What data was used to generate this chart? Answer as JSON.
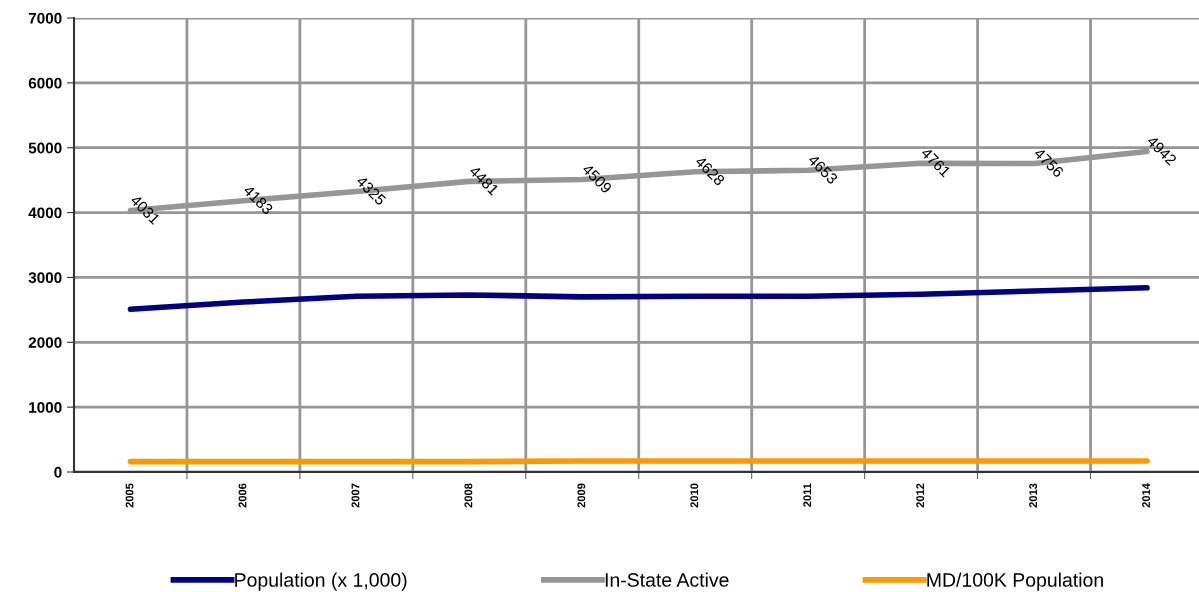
{
  "chart_data": {
    "type": "line",
    "categories": [
      "2005",
      "2006",
      "2007",
      "2008",
      "2009",
      "2010",
      "2011",
      "2012",
      "2013",
      "2014"
    ],
    "series": [
      {
        "name": "Population (x 1,000)",
        "color": "#000080",
        "values": [
          2510,
          2620,
          2710,
          2730,
          2700,
          2710,
          2710,
          2740,
          2790,
          2840
        ]
      },
      {
        "name": "In-State Active",
        "color": "#969696",
        "values": [
          4031,
          4183,
          4325,
          4481,
          4509,
          4628,
          4653,
          4761,
          4756,
          4942
        ],
        "data_labels": true
      },
      {
        "name": "MD/100K Population",
        "color": "#ff9900",
        "values": [
          160,
          160,
          160,
          160,
          170,
          170,
          170,
          170,
          170,
          170
        ]
      }
    ],
    "ylim": [
      0,
      7000
    ],
    "yticks": [
      0,
      1000,
      2000,
      3000,
      4000,
      5000,
      6000,
      7000
    ],
    "grid": true,
    "legend": "bottom",
    "marker": "none",
    "line_style": "solid"
  }
}
